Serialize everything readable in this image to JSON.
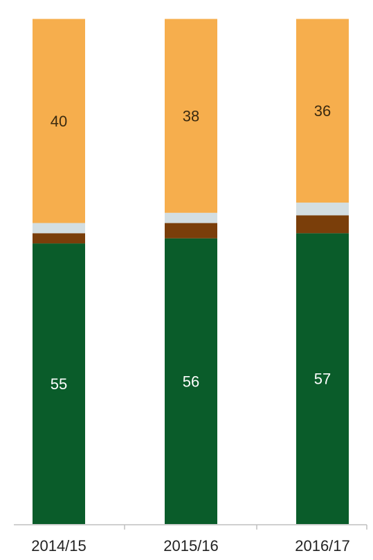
{
  "chart_data": {
    "type": "bar",
    "stacked": true,
    "categories": [
      "2014/15",
      "2015/16",
      "2016/17"
    ],
    "series": [
      {
        "values": [
          55,
          56,
          57
        ],
        "color": "#0a5c2a",
        "labels": [
          "55",
          "56",
          "57"
        ],
        "label_color": "#ffffff"
      },
      {
        "values": [
          2,
          3,
          3.5
        ],
        "color": "#7a3e0a",
        "labels": [
          "",
          "",
          ""
        ]
      },
      {
        "values": [
          2,
          2,
          2.5
        ],
        "color": "#d3dee2",
        "labels": [
          "",
          "",
          ""
        ]
      },
      {
        "values": [
          40,
          38,
          36
        ],
        "color": "#f6ae4d",
        "labels": [
          "40",
          "38",
          "36"
        ],
        "label_color": "#3a2a10"
      }
    ],
    "ylim": [
      0,
      100
    ],
    "grid": false,
    "legend": "none"
  }
}
